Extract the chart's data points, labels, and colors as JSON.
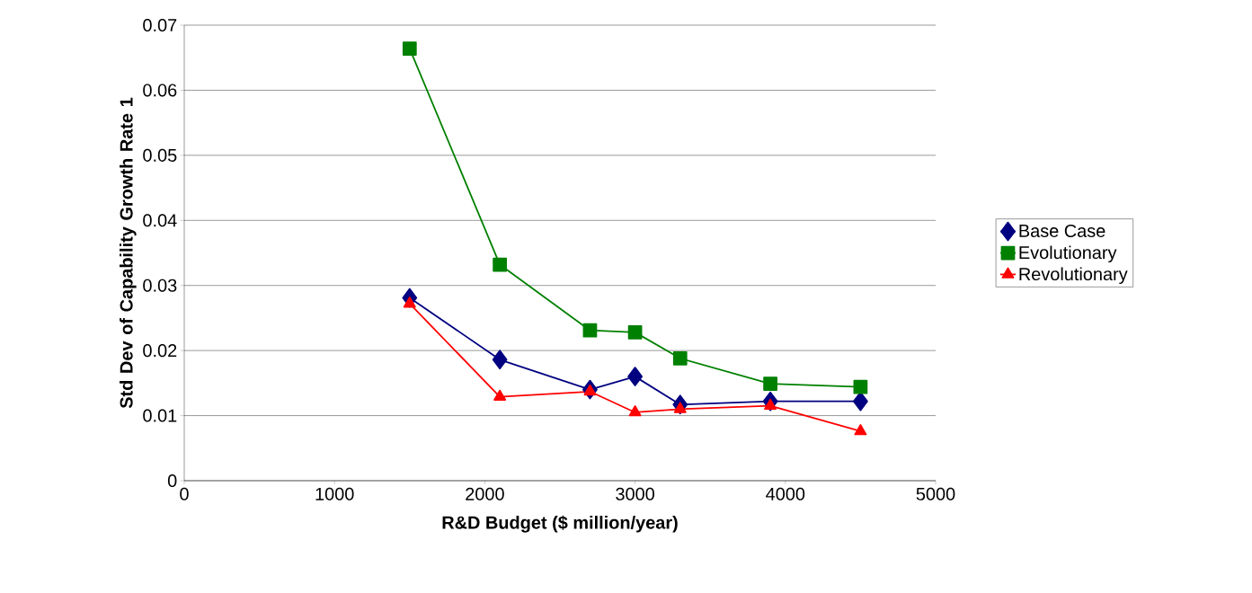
{
  "chart_data": {
    "type": "line",
    "xlabel": "R&D Budget ($ million/year)",
    "ylabel": "Std Dev of Capability Growth Rate 1",
    "x": [
      1500,
      2100,
      2700,
      3000,
      3300,
      3900,
      4500
    ],
    "series": [
      {
        "name": "Base Case",
        "color": "#000080",
        "marker": "diamond",
        "values": [
          0.0281,
          0.0186,
          0.014,
          0.016,
          0.0117,
          0.0122,
          0.0122
        ]
      },
      {
        "name": "Evolutionary",
        "color": "#008000",
        "marker": "square",
        "values": [
          0.0664,
          0.0332,
          0.0231,
          0.0228,
          0.0188,
          0.0149,
          0.0144
        ]
      },
      {
        "name": "Revolutionary",
        "color": "#ff0000",
        "marker": "triangle",
        "values": [
          0.0272,
          0.0129,
          0.0137,
          0.0105,
          0.011,
          0.0115,
          0.0076
        ]
      }
    ],
    "xlim": [
      0,
      5000
    ],
    "xticks": [
      0,
      1000,
      2000,
      3000,
      4000,
      5000
    ],
    "ylim": [
      0,
      0.07
    ],
    "yticks": [
      0,
      0.01,
      0.02,
      0.03,
      0.04,
      0.05,
      0.06,
      0.07
    ],
    "grid": "y",
    "legend": "right",
    "line_style": "solid"
  }
}
